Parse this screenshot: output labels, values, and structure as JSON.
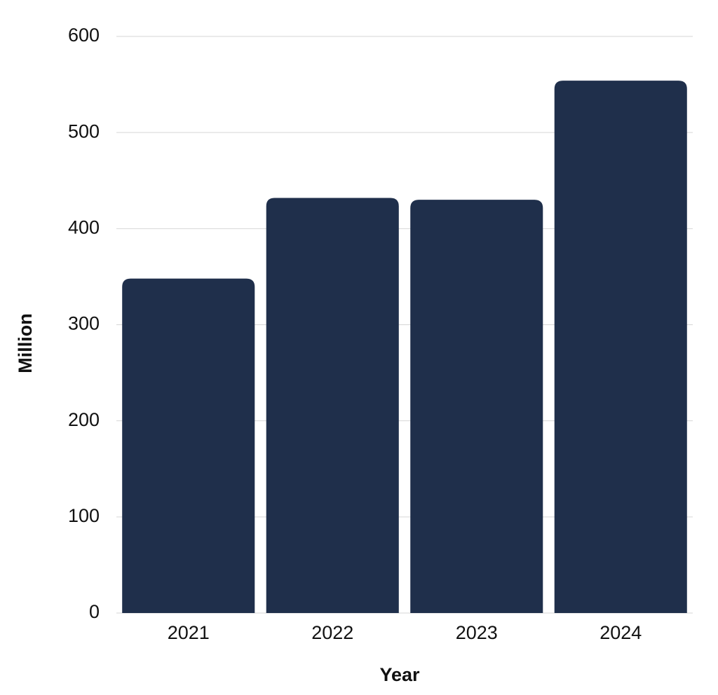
{
  "chart_data": {
    "type": "bar",
    "x_label": "Year",
    "y_label": "Million",
    "categories": [
      "2021",
      "2022",
      "2023",
      "2024"
    ],
    "values": [
      348,
      432,
      430,
      554
    ],
    "color": "#1f2f4b",
    "ylim": [
      0,
      600
    ],
    "yticks": [
      0,
      100,
      200,
      300,
      400,
      500,
      600
    ],
    "grid": true
  }
}
